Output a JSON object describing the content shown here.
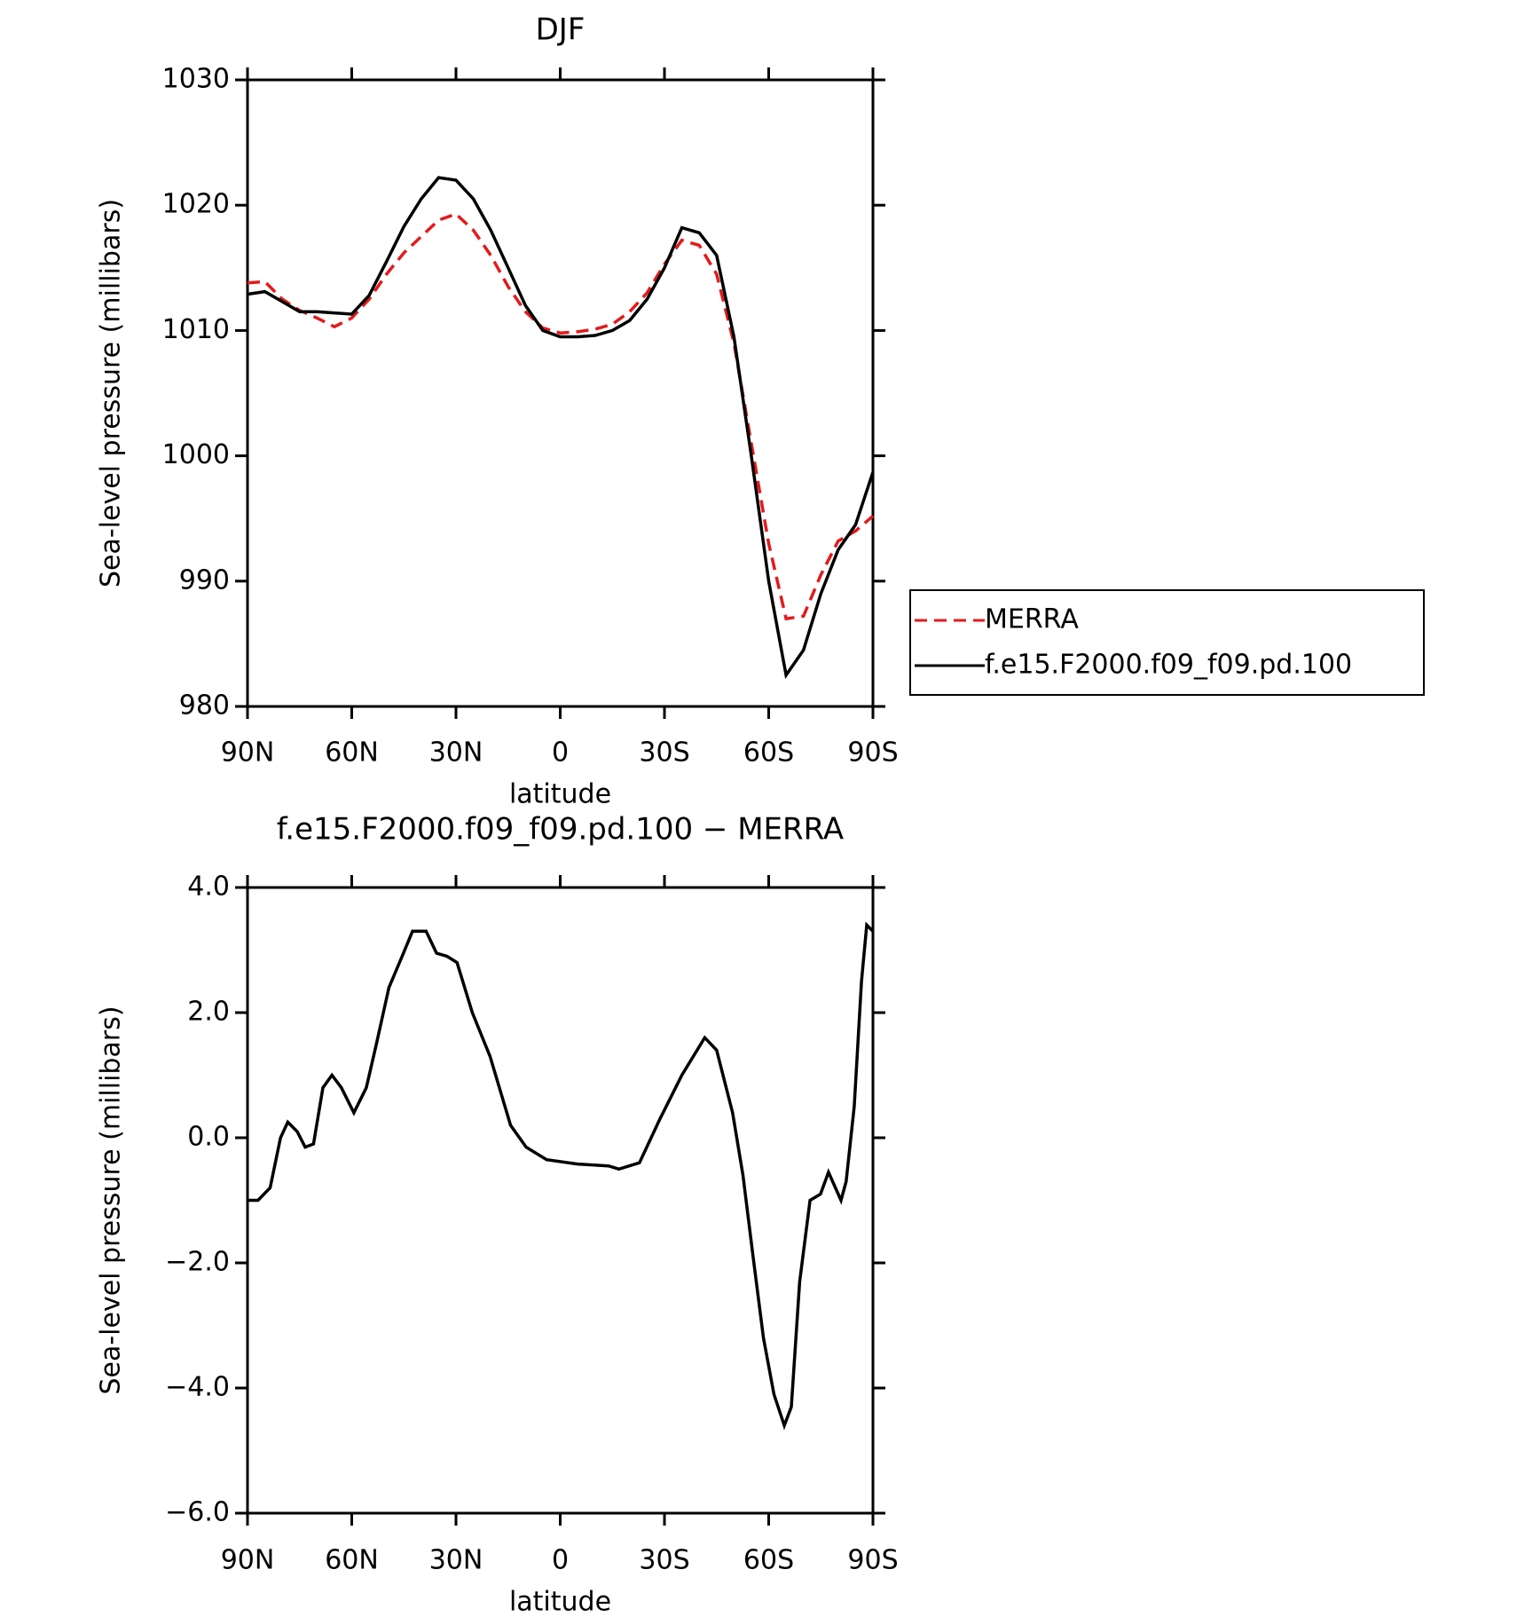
{
  "chart_data": [
    {
      "type": "line",
      "title": "DJF",
      "xlabel": "latitude",
      "ylabel": "Sea-level pressure (millibars)",
      "x": [
        90,
        85,
        80,
        75,
        70,
        65,
        60,
        55,
        50,
        45,
        40,
        35,
        30,
        25,
        20,
        15,
        10,
        5,
        0,
        -5,
        -10,
        -15,
        -20,
        -25,
        -30,
        -35,
        -40,
        -45,
        -50,
        -55,
        -60,
        -65,
        -70,
        -75,
        -80,
        -85,
        -90
      ],
      "series": [
        {
          "name": "MERRA",
          "color": "#e41a1c",
          "linestyle": "dashed",
          "values": [
            1013.8,
            1013.9,
            1012.5,
            1011.6,
            1011.0,
            1010.3,
            1011.0,
            1012.5,
            1014.5,
            1016.2,
            1017.5,
            1018.8,
            1019.3,
            1018.0,
            1016.0,
            1013.5,
            1011.5,
            1010.2,
            1009.8,
            1009.9,
            1010.1,
            1010.5,
            1011.5,
            1013.0,
            1015.3,
            1017.2,
            1016.8,
            1014.5,
            1009,
            1001,
            993,
            987,
            987.2,
            990.5,
            993.2,
            994,
            995.2
          ]
        },
        {
          "name": "f.e15.F2000.f09_f09.pd.100",
          "color": "#000000",
          "linestyle": "solid",
          "values": [
            1012.9,
            1013.1,
            1012.3,
            1011.5,
            1011.5,
            1011.4,
            1011.3,
            1012.8,
            1015.5,
            1018.3,
            1020.5,
            1022.2,
            1022.0,
            1020.5,
            1018.0,
            1015.0,
            1012.0,
            1010.0,
            1009.5,
            1009.5,
            1009.6,
            1010.0,
            1010.8,
            1012.5,
            1015.0,
            1018.2,
            1017.8,
            1016.0,
            1009.5,
            1000,
            990,
            982.5,
            984.5,
            989,
            992.5,
            994.5,
            998.7
          ]
        }
      ],
      "xlim": [
        90,
        -90
      ],
      "xticks": [
        {
          "value": 90,
          "label": "90N"
        },
        {
          "value": 60,
          "label": "60N"
        },
        {
          "value": 30,
          "label": "30N"
        },
        0,
        {
          "value": -30,
          "label": "30S"
        },
        {
          "value": -60,
          "label": "60S"
        },
        {
          "value": -90,
          "label": "90S"
        }
      ],
      "ylim": [
        980,
        1030
      ],
      "yticks": [
        980,
        990,
        1000,
        1010,
        1020,
        1030
      ],
      "legend": "right"
    },
    {
      "type": "line",
      "title": "f.e15.F2000.f09_f09.pd.100 − MERRA",
      "xlabel": "latitude",
      "ylabel": "Sea-level pressure (millibars)",
      "x": [
        90,
        87.0,
        83.5,
        80.5,
        78.4,
        75.7,
        73.4,
        71.0,
        68.3,
        65.7,
        63.0,
        59.4,
        55.8,
        52.9,
        49.3,
        45.5,
        42.5,
        38.6,
        35.6,
        32.6,
        29.7,
        25.3,
        20.2,
        14.3,
        9.8,
        3.9,
        -5.0,
        -13.9,
        -16.9,
        -22.8,
        -28.7,
        -35,
        -41.6,
        -45,
        -49.6,
        -52.6,
        -55.5,
        -58.5,
        -61.5,
        -64.5,
        -66.5,
        -68.9,
        -71.9,
        -74.9,
        -77.2,
        -80.8,
        -82.3,
        -84.6,
        -86.7,
        -88.2,
        -90
      ],
      "series": [
        {
          "color": "#000000",
          "linestyle": "solid",
          "values": [
            -1.0,
            -1.0,
            -0.8,
            0.0,
            0.25,
            0.1,
            -0.15,
            -0.1,
            0.8,
            1.0,
            0.8,
            0.4,
            0.8,
            1.5,
            2.4,
            2.9,
            3.3,
            3.3,
            2.95,
            2.9,
            2.8,
            2.0,
            1.3,
            0.2,
            -0.15,
            -0.35,
            -0.42,
            -0.45,
            -0.5,
            -0.4,
            0.3,
            1.0,
            1.6,
            1.4,
            0.4,
            -0.6,
            -1.9,
            -3.2,
            -4.1,
            -4.6,
            -4.3,
            -2.3,
            -1.0,
            -0.9,
            -0.55,
            -1.0,
            -0.7,
            0.5,
            2.5,
            3.4,
            3.3
          ]
        }
      ],
      "xlim": [
        90,
        -90
      ],
      "xticks": [
        {
          "value": 90,
          "label": "90N"
        },
        {
          "value": 60,
          "label": "60N"
        },
        {
          "value": 30,
          "label": "30N"
        },
        0,
        {
          "value": -30,
          "label": "30S"
        },
        {
          "value": -60,
          "label": "60S"
        },
        {
          "value": -90,
          "label": "90S"
        }
      ],
      "ylim": [
        -6,
        4
      ],
      "yticks": [
        {
          "value": -6,
          "label": "−6.0"
        },
        {
          "value": -4,
          "label": "−4.0"
        },
        {
          "value": -2,
          "label": "−2.0"
        },
        {
          "value": 0,
          "label": "0.0"
        },
        {
          "value": 2,
          "label": "2.0"
        },
        {
          "value": 4,
          "label": "4.0"
        }
      ]
    }
  ]
}
